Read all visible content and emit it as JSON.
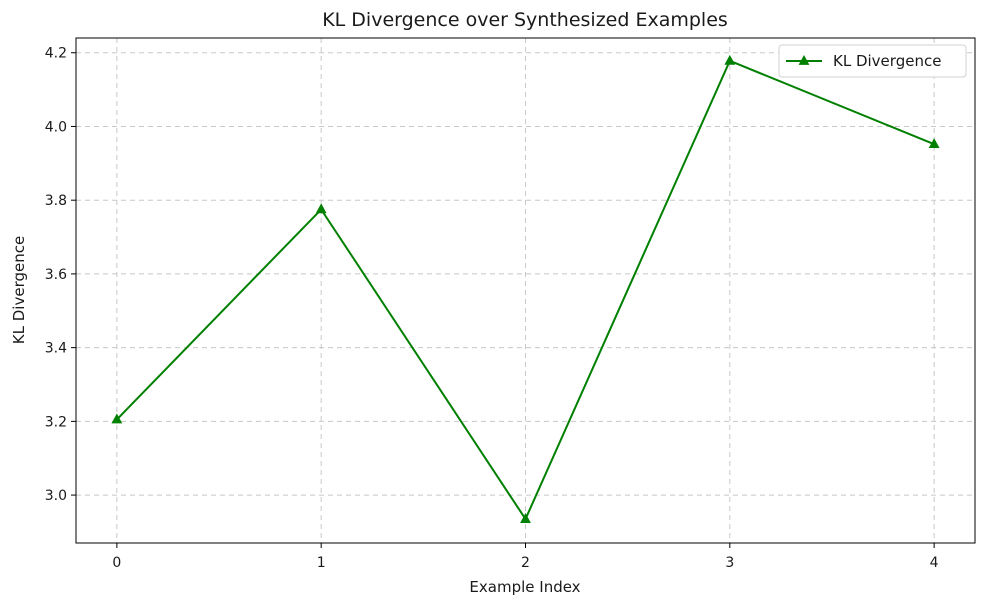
{
  "chart_data": {
    "type": "line",
    "title": "KL Divergence over Synthesized Examples",
    "xlabel": "Example Index",
    "ylabel": "KL Divergence",
    "x": [
      0,
      1,
      2,
      3,
      4
    ],
    "xticks": [
      "0",
      "1",
      "2",
      "3",
      "4"
    ],
    "xlim": [
      -0.2,
      4.2
    ],
    "yticks": [
      "3.0",
      "3.2",
      "3.4",
      "3.6",
      "3.8",
      "4.0",
      "4.2"
    ],
    "ylim": [
      2.87,
      4.24
    ],
    "grid": true,
    "legend_position": "top-right",
    "series": [
      {
        "name": "KL Divergence",
        "values": [
          3.205,
          3.775,
          2.935,
          4.178,
          3.952
        ],
        "color": "#008000",
        "marker": "triangle-up"
      }
    ]
  }
}
